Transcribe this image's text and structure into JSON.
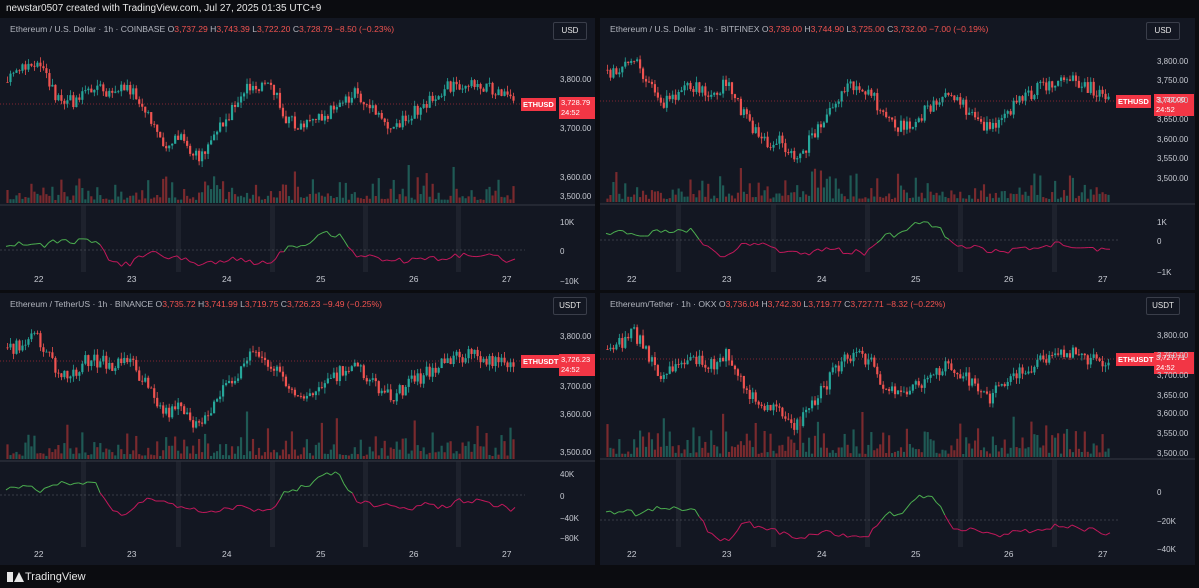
{
  "header": {
    "text": "newstar0507 created with TradingView.com, Jul 27, 2025 01:35 UTC+9"
  },
  "footer": {
    "brand": "TradingView"
  },
  "colors": {
    "up": "#26a69a",
    "down": "#ef5350",
    "bg": "#131722",
    "osc_up": "#4caf50",
    "osc_down": "#c2185b",
    "tag": "#f23645"
  },
  "panels": [
    {
      "title_head": "Ethereum / U.S. Dollar · 1h · COINBASE",
      "O": "3,737.29",
      "H": "3,743.39",
      "L": "3,722.20",
      "C": "3,728.79",
      "chg": "−8.50 (−0.23%)",
      "currency": "USD",
      "symbol": "ETHUSD",
      "last_price": "3,728.79",
      "countdown": "24:52",
      "price_labels": [
        "3,800.00",
        "3,700.00",
        "3,600.00",
        "3,500.00"
      ],
      "osc_labels": [
        "10K",
        "0",
        "−10K"
      ],
      "dates": [
        "22",
        "23",
        "24",
        "25",
        "26",
        "27"
      ]
    },
    {
      "title_head": "Ethereum / U.S. Dollar · 1h · BITFINEX",
      "O": "3,739.00",
      "H": "3,744.90",
      "L": "3,725.00",
      "C": "3,732.00",
      "chg": "−7.00 (−0.19%)",
      "currency": "USD",
      "symbol": "ETHUSD",
      "last_price": "3,732.00",
      "countdown": "24:52",
      "price_labels": [
        "3,800.00",
        "3,750.00",
        "3,700.00",
        "3,650.00",
        "3,600.00",
        "3,550.00",
        "3,500.00"
      ],
      "osc_labels": [
        "1K",
        "0",
        "−1K"
      ],
      "dates": [
        "22",
        "23",
        "24",
        "25",
        "26",
        "27"
      ]
    },
    {
      "title_head": "Ethereum / TetherUS · 1h · BINANCE",
      "O": "3,735.72",
      "H": "3,741.99",
      "L": "3,719.75",
      "C": "3,726.23",
      "chg": "−9.49 (−0.25%)",
      "currency": "USDT",
      "symbol": "ETHUSDT",
      "last_price": "3,726.23",
      "countdown": "24:52",
      "price_labels": [
        "3,800.00",
        "3,700.00",
        "3,600.00",
        "3,500.00"
      ],
      "osc_labels": [
        "40K",
        "0",
        "−40K",
        "−80K"
      ],
      "dates": [
        "22",
        "23",
        "24",
        "25",
        "26",
        "27"
      ]
    },
    {
      "title_head": "Ethereum/Tether · 1h · OKX",
      "O": "3,736.04",
      "H": "3,742.30",
      "L": "3,719.77",
      "C": "3,727.71",
      "chg": "−8.32 (−0.22%)",
      "currency": "USDT",
      "symbol": "ETHUSDT",
      "last_price": "3,727.71",
      "countdown": "24:52",
      "price_labels": [
        "3,800.00",
        "3,750.00",
        "3,700.00",
        "3,650.00",
        "3,600.00",
        "3,550.00",
        "3,500.00"
      ],
      "osc_labels": [
        "0",
        "−20K",
        "−40K"
      ],
      "dates": [
        "22",
        "23",
        "24",
        "25",
        "26",
        "27"
      ]
    }
  ]
}
